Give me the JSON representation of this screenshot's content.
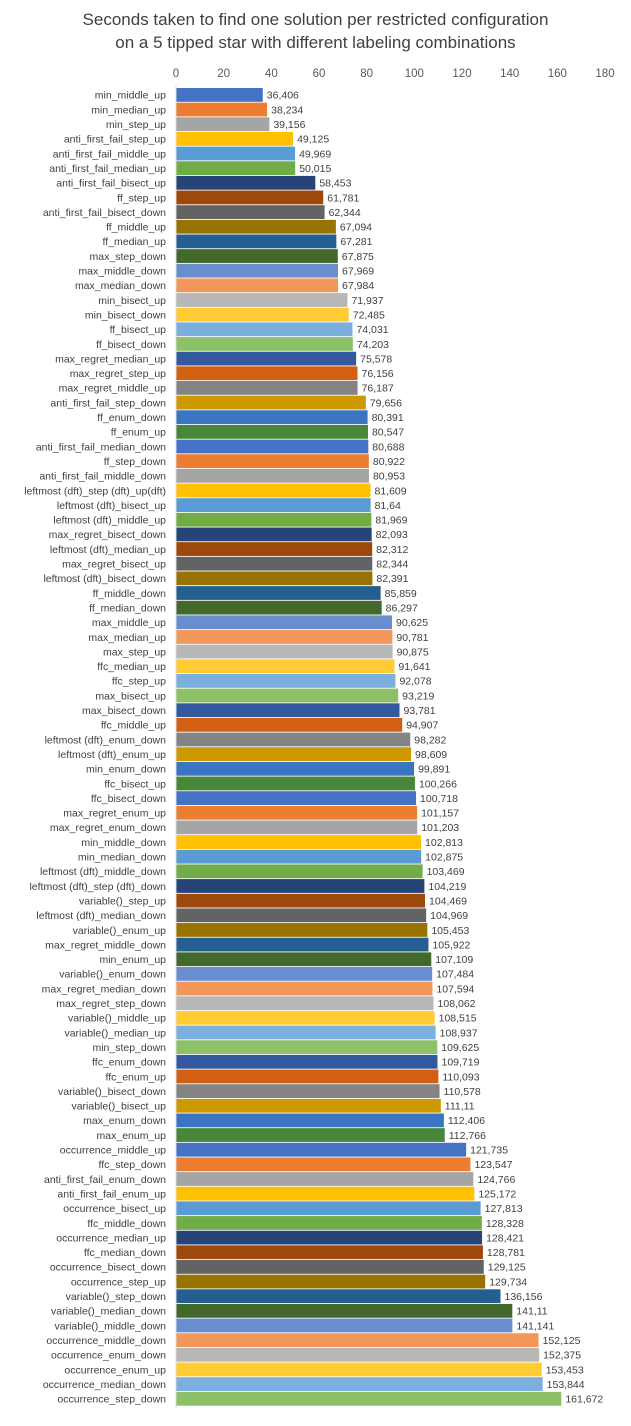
{
  "chart_data": {
    "type": "bar",
    "orientation": "horizontal",
    "title": [
      "Seconds taken to find one solution per restricted configuration",
      "on a 5 tipped star with different labeling combinations"
    ],
    "xlim": [
      0,
      180
    ],
    "xticks": [
      0,
      20,
      40,
      60,
      80,
      100,
      120,
      140,
      160,
      180
    ],
    "x_axis_position": "top",
    "grid": false,
    "legend": "none",
    "palette": [
      "#4472C4",
      "#ED7D31",
      "#A5A5A5",
      "#FFC000",
      "#5B9BD5",
      "#70AD47",
      "#264478",
      "#9E480E",
      "#636363",
      "#997300",
      "#255E91",
      "#43682B",
      "#698ED0",
      "#F1975A",
      "#B7B7B7",
      "#FFCD33",
      "#7CAFDD",
      "#8CC168",
      "#335AA1",
      "#D26012",
      "#848484",
      "#CC9A00",
      "#3A75C4",
      "#48873A"
    ],
    "categories": [
      "min_middle_up",
      "min_median_up",
      "min_step_up",
      "anti_first_fail_step_up",
      "anti_first_fail_middle_up",
      "anti_first_fail_median_up",
      "anti_first_fail_bisect_up",
      "ff_step_up",
      "anti_first_fail_bisect_down",
      "ff_middle_up",
      "ff_median_up",
      "max_step_down",
      "max_middle_down",
      "max_median_down",
      "min_bisect_up",
      "min_bisect_down",
      "ff_bisect_up",
      "ff_bisect_down",
      "max_regret_median_up",
      "max_regret_step_up",
      "max_regret_middle_up",
      "anti_first_fail_step_down",
      "ff_enum_down",
      "ff_enum_up",
      "anti_first_fail_median_down",
      "ff_step_down",
      "anti_first_fail_middle_down",
      "leftmost (dft)_step (dft)_up(dft)",
      "leftmost (dft)_bisect_up",
      "leftmost (dft)_middle_up",
      "max_regret_bisect_down",
      "leftmost (dft)_median_up",
      "max_regret_bisect_up",
      "leftmost (dft)_bisect_down",
      "ff_middle_down",
      "ff_median_down",
      "max_middle_up",
      "max_median_up",
      "max_step_up",
      "ffc_median_up",
      "ffc_step_up",
      "max_bisect_up",
      "max_bisect_down",
      "ffc_middle_up",
      "leftmost (dft)_enum_down",
      "leftmost (dft)_enum_up",
      "min_enum_down",
      "ffc_bisect_up",
      "ffc_bisect_down",
      "max_regret_enum_up",
      "max_regret_enum_down",
      "min_middle_down",
      "min_median_down",
      "leftmost (dft)_middle_down",
      "leftmost (dft)_step (dft)_down",
      "variable()_step_up",
      "leftmost (dft)_median_down",
      "variable()_enum_up",
      "max_regret_middle_down",
      "min_enum_up",
      "variable()_enum_down",
      "max_regret_median_down",
      "max_regret_step_down",
      "variable()_middle_up",
      "variable()_median_up",
      "min_step_down",
      "ffc_enum_down",
      "ffc_enum_up",
      "variable()_bisect_down",
      "variable()_bisect_up",
      "max_enum_down",
      "max_enum_up",
      "occurrence_middle_up",
      "ffc_step_down",
      "anti_first_fail_enum_down",
      "anti_first_fail_enum_up",
      "occurrence_bisect_up",
      "ffc_middle_down",
      "occurrence_median_up",
      "ffc_median_down",
      "occurrence_bisect_down",
      "occurrence_step_up",
      "variable()_step_down",
      "variable()_median_down",
      "variable()_middle_down",
      "occurrence_middle_down",
      "occurrence_enum_down",
      "occurrence_enum_up",
      "occurrence_median_down",
      "occurrence_step_down"
    ],
    "values": [
      36.406,
      38.234,
      39.156,
      49.125,
      49.969,
      50.015,
      58.453,
      61.781,
      62.344,
      67.094,
      67.281,
      67.875,
      67.969,
      67.984,
      71.937,
      72.485,
      74.031,
      74.203,
      75.578,
      76.156,
      76.187,
      79.656,
      80.391,
      80.547,
      80.688,
      80.922,
      80.953,
      81.609,
      81.64,
      81.969,
      82.093,
      82.312,
      82.344,
      82.391,
      85.859,
      86.297,
      90.625,
      90.781,
      90.875,
      91.641,
      92.078,
      93.219,
      93.781,
      94.907,
      98.282,
      98.609,
      99.891,
      100.266,
      100.718,
      101.157,
      101.203,
      102.813,
      102.875,
      103.469,
      104.219,
      104.469,
      104.969,
      105.453,
      105.922,
      107.109,
      107.484,
      107.594,
      108.062,
      108.515,
      108.937,
      109.625,
      109.719,
      110.093,
      110.578,
      111.11,
      112.406,
      112.766,
      121.735,
      123.547,
      124.766,
      125.172,
      127.813,
      128.328,
      128.421,
      128.781,
      129.125,
      129.734,
      136.156,
      141.11,
      141.141,
      152.125,
      152.375,
      153.453,
      153.844,
      161.672
    ],
    "data_labels": [
      "36,406",
      "38,234",
      "39,156",
      "49,125",
      "49,969",
      "50,015",
      "58,453",
      "61,781",
      "62,344",
      "67,094",
      "67,281",
      "67,875",
      "67,969",
      "67,984",
      "71,937",
      "72,485",
      "74,031",
      "74,203",
      "75,578",
      "76,156",
      "76,187",
      "79,656",
      "80,391",
      "80,547",
      "80,688",
      "80,922",
      "80,953",
      "81,609",
      "81,64",
      "81,969",
      "82,093",
      "82,312",
      "82,344",
      "82,391",
      "85,859",
      "86,297",
      "90,625",
      "90,781",
      "90,875",
      "91,641",
      "92,078",
      "93,219",
      "93,781",
      "94,907",
      "98,282",
      "98,609",
      "99,891",
      "100,266",
      "100,718",
      "101,157",
      "101,203",
      "102,813",
      "102,875",
      "103,469",
      "104,219",
      "104,469",
      "104,969",
      "105,453",
      "105,922",
      "107,109",
      "107,484",
      "107,594",
      "108,062",
      "108,515",
      "108,937",
      "109,625",
      "109,719",
      "110,093",
      "110,578",
      "111,11",
      "112,406",
      "112,766",
      "121,735",
      "123,547",
      "124,766",
      "125,172",
      "127,813",
      "128,328",
      "128,421",
      "128,781",
      "129,125",
      "129,734",
      "136,156",
      "141,11",
      "141,141",
      "152,125",
      "152,375",
      "153,453",
      "153,844",
      "161,672"
    ]
  }
}
